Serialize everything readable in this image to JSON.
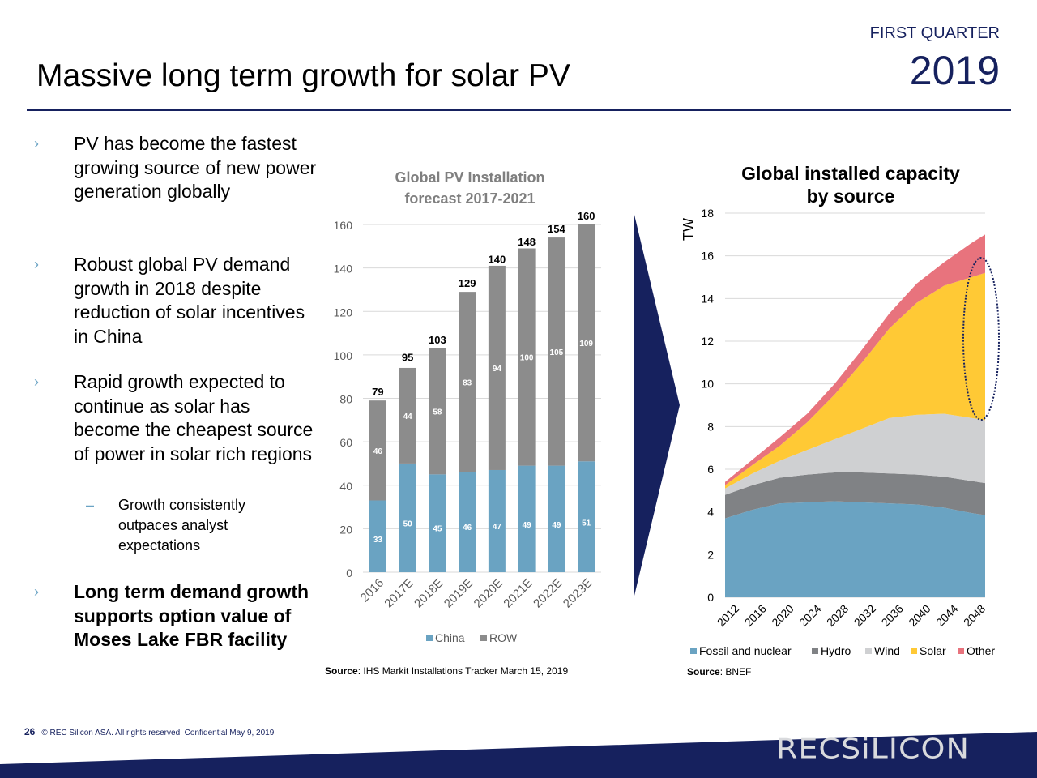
{
  "header": {
    "title": "Massive long term growth for solar PV",
    "quarter_label": "FIRST QUARTER",
    "year_label": "2019"
  },
  "bullets": [
    {
      "text": "PV has become the fastest growing source of new power generation globally",
      "bold": false
    },
    {
      "text": "Robust global PV demand growth in 2018 despite reduction of solar incentives in China",
      "bold": false
    },
    {
      "text": "Rapid growth expected to continue as solar has become the cheapest source of power in solar rich regions",
      "bold": false
    },
    {
      "text": "Long term demand growth supports option value of Moses Lake FBR facility",
      "bold": true
    }
  ],
  "sub_bullet": {
    "text": "Growth consistently outpaces analyst expectations"
  },
  "bullet_marker": "›",
  "sub_marker": "–",
  "colors": {
    "brand_navy": "#16215e",
    "china": "#6aa3c2",
    "row": "#8c8c8c",
    "fossil": "#6aa3c2",
    "hydro": "#808285",
    "wind": "#cfd0d2",
    "solar": "#ffc935",
    "other": "#e8737d"
  },
  "chart_data": [
    {
      "type": "bar",
      "stacked": true,
      "title": "Global PV Installation forecast 2017-2021",
      "categories": [
        "2016",
        "2017E",
        "2018E",
        "2019E",
        "2020E",
        "2021E",
        "2022E",
        "2023E"
      ],
      "series": [
        {
          "name": "China",
          "values": [
            33,
            50,
            45,
            46,
            47,
            49,
            49,
            51
          ]
        },
        {
          "name": "ROW",
          "values": [
            46,
            44,
            58,
            83,
            94,
            100,
            105,
            109
          ]
        }
      ],
      "totals": [
        79,
        95,
        103,
        129,
        140,
        148,
        154,
        160
      ],
      "ylim": [
        0,
        160
      ],
      "yticks": [
        0,
        20,
        40,
        60,
        80,
        100,
        120,
        140,
        160
      ],
      "xlabel": "",
      "ylabel": "",
      "grid": true,
      "legend": "bottom",
      "source_label": "Source",
      "source_text": ": IHS Markit Installations Tracker March 15, 2019"
    },
    {
      "type": "area",
      "stacked": true,
      "title": "Global installed capacity by source",
      "ylabel": "TW",
      "xlabel": "",
      "x": [
        2012,
        2016,
        2020,
        2024,
        2028,
        2032,
        2036,
        2040,
        2044,
        2048,
        2050
      ],
      "xticks": [
        "2012",
        "2016",
        "2020",
        "2024",
        "2028",
        "2032",
        "2036",
        "2040",
        "2044",
        "2048"
      ],
      "series": [
        {
          "name": "Fossil and nuclear",
          "values": [
            3.7,
            4.1,
            4.4,
            4.45,
            4.5,
            4.45,
            4.4,
            4.35,
            4.2,
            3.95,
            3.85
          ]
        },
        {
          "name": "Hydro",
          "values": [
            1.1,
            1.15,
            1.2,
            1.3,
            1.35,
            1.4,
            1.4,
            1.4,
            1.45,
            1.5,
            1.5
          ]
        },
        {
          "name": "Wind",
          "values": [
            0.3,
            0.55,
            0.8,
            1.15,
            1.55,
            2.05,
            2.6,
            2.8,
            2.95,
            2.95,
            2.95
          ]
        },
        {
          "name": "Solar",
          "values": [
            0.15,
            0.4,
            0.7,
            1.3,
            2.1,
            3.1,
            4.2,
            5.25,
            6.0,
            6.6,
            6.9
          ]
        },
        {
          "name": "Other",
          "values": [
            0.15,
            0.25,
            0.4,
            0.4,
            0.5,
            0.6,
            0.7,
            0.9,
            1.1,
            1.6,
            1.8
          ]
        }
      ],
      "ylim": [
        0,
        18
      ],
      "yticks": [
        0,
        2,
        4,
        6,
        8,
        10,
        12,
        14,
        16,
        18
      ],
      "grid": true,
      "legend": "bottom",
      "annotation": "dotted ellipse highlighting solar share at 2050",
      "source_label": "Source",
      "source_text": ": BNEF"
    }
  ],
  "footer": {
    "page_number": "26",
    "copyright": "© REC Silicon ASA. All rights reserved. Confidential  May 9, 2019",
    "logo_text": "RECSiLICON"
  }
}
